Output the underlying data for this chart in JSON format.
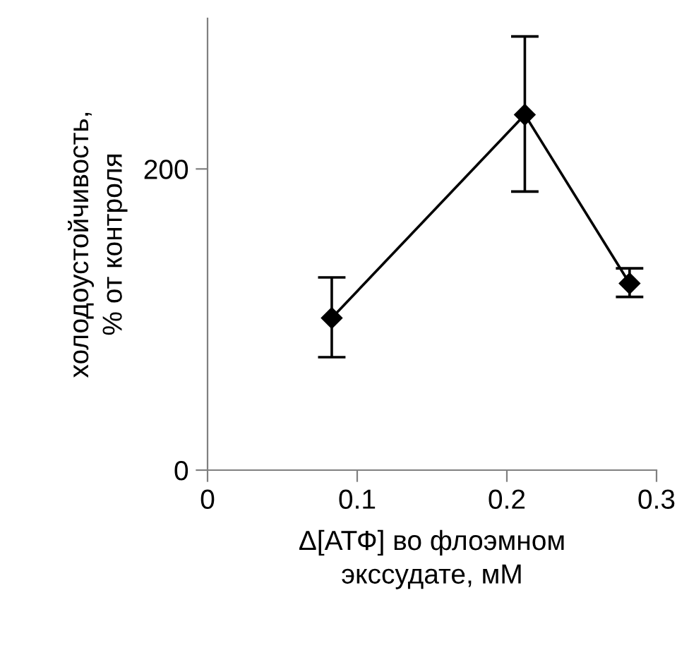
{
  "chart_data": {
    "type": "line",
    "xlabel": "Δ[АТФ] во флоэмном экссудате, мМ",
    "ylabel": "холодоустойчивость, % от контроля",
    "x": [
      0.083,
      0.212,
      0.282
    ],
    "series": [
      {
        "color": "#000000",
        "values": [
          101,
          236,
          124
        ],
        "errors": [
          [
            75,
            128
          ],
          [
            185,
            288
          ],
          [
            115,
            134
          ]
        ]
      }
    ],
    "xlim": [
      0,
      0.3
    ],
    "xticks": [
      0,
      0.1,
      0.2,
      0.3
    ],
    "ylim": [
      0,
      300
    ],
    "yticks": [
      0,
      200
    ],
    "marker": "diamond",
    "line_style": "solid"
  }
}
